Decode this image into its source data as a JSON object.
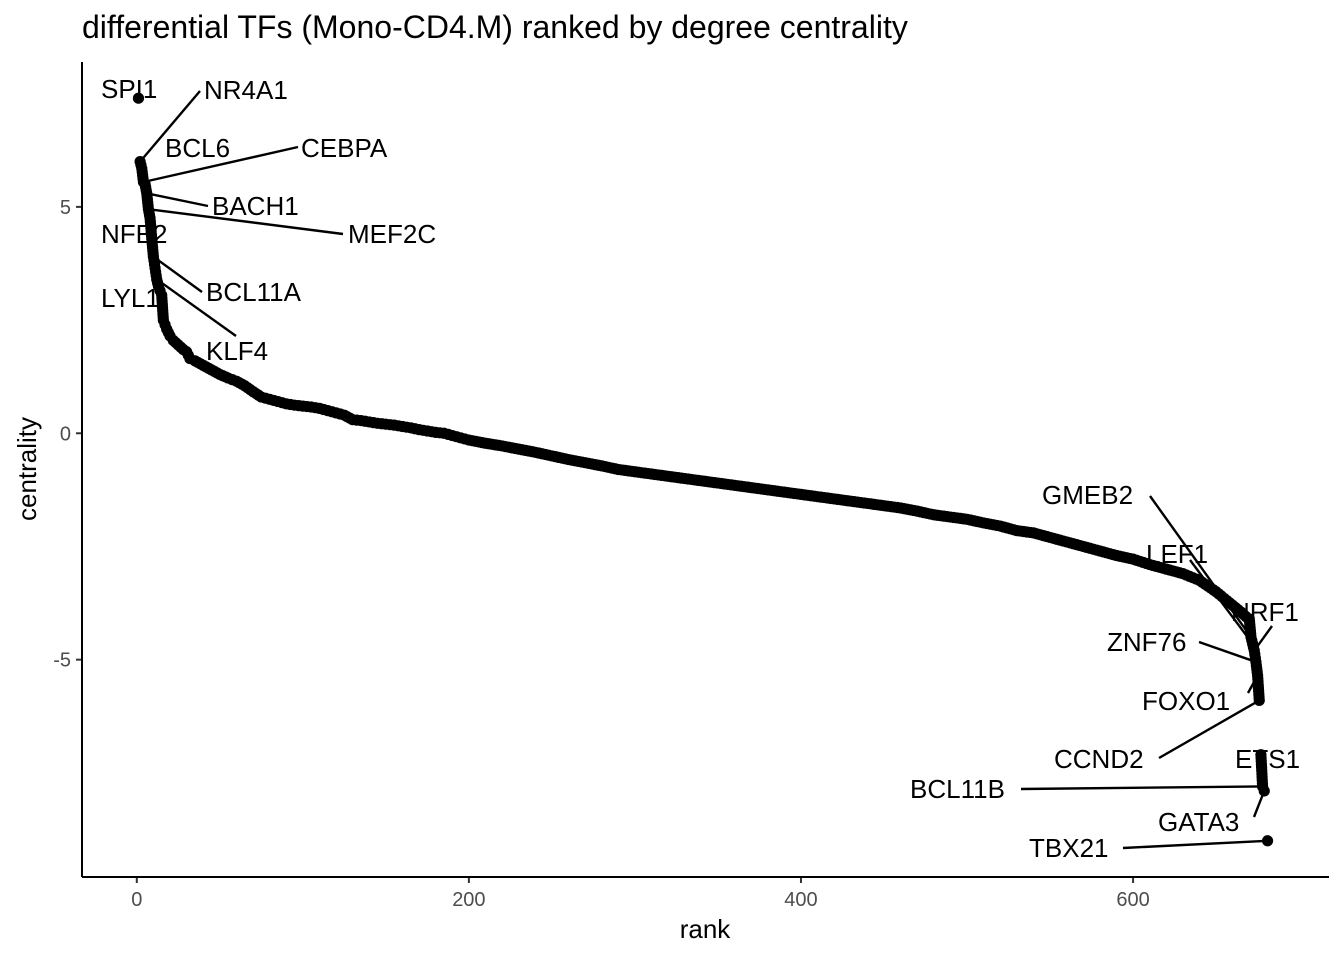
{
  "chart_data": {
    "type": "scatter",
    "title": "differential TFs (Mono-CD4.M) ranked by degree centrality",
    "xlabel": "rank",
    "ylabel": "centrality",
    "xlim": [
      -33,
      718
    ],
    "ylim": [
      -9.8,
      8.2
    ],
    "xticks": [
      0,
      200,
      400,
      600
    ],
    "yticks": [
      -5,
      0,
      5
    ],
    "grid": false,
    "legend": "none",
    "series": [
      {
        "values_note": "",
        "points": [
          [
            1,
            7.4
          ],
          [
            2,
            6.0
          ],
          [
            3,
            5.85
          ],
          [
            4,
            5.55
          ],
          [
            5,
            5.5
          ],
          [
            6,
            5.3
          ],
          [
            7,
            4.95
          ],
          [
            8,
            4.75
          ],
          [
            9,
            4.3
          ],
          [
            10,
            3.9
          ],
          [
            11,
            3.65
          ],
          [
            12,
            3.4
          ],
          [
            13,
            3.25
          ],
          [
            14,
            3.15
          ],
          [
            15,
            3.05
          ],
          [
            16,
            2.5
          ],
          [
            17,
            2.4
          ],
          [
            18,
            2.3
          ],
          [
            20,
            2.15
          ],
          [
            22,
            2.05
          ],
          [
            25,
            1.95
          ],
          [
            28,
            1.85
          ],
          [
            30,
            1.8
          ],
          [
            32,
            1.65
          ],
          [
            35,
            1.6
          ],
          [
            40,
            1.5
          ],
          [
            45,
            1.4
          ],
          [
            50,
            1.3
          ],
          [
            55,
            1.22
          ],
          [
            60,
            1.15
          ],
          [
            65,
            1.05
          ],
          [
            70,
            0.92
          ],
          [
            75,
            0.8
          ],
          [
            80,
            0.75
          ],
          [
            85,
            0.7
          ],
          [
            90,
            0.65
          ],
          [
            95,
            0.62
          ],
          [
            100,
            0.6
          ],
          [
            105,
            0.58
          ],
          [
            110,
            0.55
          ],
          [
            115,
            0.5
          ],
          [
            120,
            0.45
          ],
          [
            125,
            0.4
          ],
          [
            130,
            0.3
          ],
          [
            135,
            0.28
          ],
          [
            140,
            0.25
          ],
          [
            145,
            0.22
          ],
          [
            150,
            0.2
          ],
          [
            155,
            0.18
          ],
          [
            160,
            0.15
          ],
          [
            165,
            0.12
          ],
          [
            170,
            0.08
          ],
          [
            175,
            0.05
          ],
          [
            180,
            0.02
          ],
          [
            185,
            0.0
          ],
          [
            190,
            -0.05
          ],
          [
            195,
            -0.1
          ],
          [
            200,
            -0.15
          ],
          [
            210,
            -0.22
          ],
          [
            220,
            -0.28
          ],
          [
            230,
            -0.35
          ],
          [
            240,
            -0.42
          ],
          [
            250,
            -0.5
          ],
          [
            260,
            -0.58
          ],
          [
            270,
            -0.65
          ],
          [
            280,
            -0.72
          ],
          [
            290,
            -0.8
          ],
          [
            300,
            -0.85
          ],
          [
            310,
            -0.9
          ],
          [
            320,
            -0.95
          ],
          [
            330,
            -1.0
          ],
          [
            340,
            -1.05
          ],
          [
            350,
            -1.1
          ],
          [
            360,
            -1.15
          ],
          [
            370,
            -1.2
          ],
          [
            380,
            -1.25
          ],
          [
            390,
            -1.3
          ],
          [
            400,
            -1.35
          ],
          [
            410,
            -1.4
          ],
          [
            420,
            -1.45
          ],
          [
            430,
            -1.5
          ],
          [
            440,
            -1.55
          ],
          [
            450,
            -1.6
          ],
          [
            460,
            -1.65
          ],
          [
            470,
            -1.72
          ],
          [
            480,
            -1.8
          ],
          [
            490,
            -1.85
          ],
          [
            500,
            -1.9
          ],
          [
            510,
            -1.98
          ],
          [
            520,
            -2.05
          ],
          [
            530,
            -2.15
          ],
          [
            540,
            -2.2
          ],
          [
            550,
            -2.3
          ],
          [
            560,
            -2.4
          ],
          [
            570,
            -2.5
          ],
          [
            580,
            -2.6
          ],
          [
            590,
            -2.7
          ],
          [
            600,
            -2.78
          ],
          [
            610,
            -2.9
          ],
          [
            620,
            -3.0
          ],
          [
            630,
            -3.1
          ],
          [
            640,
            -3.25
          ],
          [
            650,
            -3.5
          ],
          [
            655,
            -3.65
          ],
          [
            660,
            -3.8
          ],
          [
            665,
            -3.95
          ],
          [
            668,
            -4.05
          ],
          [
            670,
            -4.1
          ],
          [
            671,
            -4.5
          ],
          [
            672,
            -4.65
          ],
          [
            673,
            -4.8
          ],
          [
            674,
            -5.05
          ],
          [
            675,
            -5.35
          ],
          [
            676,
            -5.9
          ],
          [
            677,
            -7.1
          ],
          [
            678,
            -7.8
          ],
          [
            679,
            -7.9
          ],
          [
            681,
            -9.0
          ]
        ]
      }
    ],
    "annotations": [
      {
        "label": "SPI1",
        "x": 1,
        "y": 7.4
      },
      {
        "label": "NR4A1",
        "x": 2,
        "y": 6.0
      },
      {
        "label": "BCL6",
        "x": 3,
        "y": 5.85
      },
      {
        "label": "CEBPA",
        "x": 4,
        "y": 5.55
      },
      {
        "label": "BACH1",
        "x": 6,
        "y": 5.3
      },
      {
        "label": "MEF2C",
        "x": 7,
        "y": 4.95
      },
      {
        "label": "NFE2",
        "x": 9,
        "y": 4.3
      },
      {
        "label": "BCL11A",
        "x": 10,
        "y": 3.9
      },
      {
        "label": "LYL1",
        "x": 13,
        "y": 3.25
      },
      {
        "label": "KLF4",
        "x": 12,
        "y": 3.4
      },
      {
        "label": "GMEB2",
        "x": 671,
        "y": -4.5
      },
      {
        "label": "LEF1",
        "x": 672,
        "y": -4.65
      },
      {
        "label": "NRF1",
        "x": 673,
        "y": -4.8
      },
      {
        "label": "ZNF76",
        "x": 674,
        "y": -5.05
      },
      {
        "label": "FOXO1",
        "x": 675,
        "y": -5.35
      },
      {
        "label": "CCND2",
        "x": 676,
        "y": -5.9
      },
      {
        "label": "ETS1",
        "x": 677,
        "y": -7.1
      },
      {
        "label": "BCL11B",
        "x": 678,
        "y": -7.8
      },
      {
        "label": "GATA3",
        "x": 679,
        "y": -7.9
      },
      {
        "label": "TBX21",
        "x": 681,
        "y": -9.0
      }
    ]
  }
}
